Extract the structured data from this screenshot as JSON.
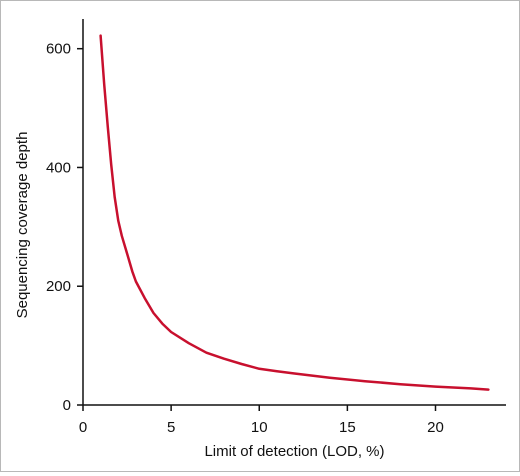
{
  "chart_data": {
    "type": "line",
    "title": "",
    "xlabel": "Limit of detection (LOD, %)",
    "ylabel": "Sequencing coverage depth",
    "xlim": [
      0,
      24
    ],
    "ylim": [
      0,
      650
    ],
    "x_ticks": [
      0,
      5,
      10,
      15,
      20
    ],
    "y_ticks": [
      0,
      200,
      400,
      600
    ],
    "grid": false,
    "legend": "none",
    "series": [
      {
        "color": "#c8102e",
        "x": [
          1.0,
          1.2,
          1.4,
          1.6,
          1.8,
          2.0,
          2.2,
          2.5,
          2.8,
          3.0,
          3.5,
          4.0,
          4.5,
          5.0,
          6.0,
          7.0,
          8.0,
          9.0,
          10.0,
          11.0,
          12.0,
          14.0,
          16.0,
          18.0,
          20.0,
          22.0,
          23.0
        ],
        "y": [
          622,
          540,
          470,
          405,
          350,
          310,
          285,
          255,
          225,
          208,
          180,
          155,
          137,
          123,
          104,
          88,
          78,
          69,
          61,
          57,
          53,
          46,
          40,
          35,
          31,
          28,
          26
        ]
      }
    ]
  }
}
